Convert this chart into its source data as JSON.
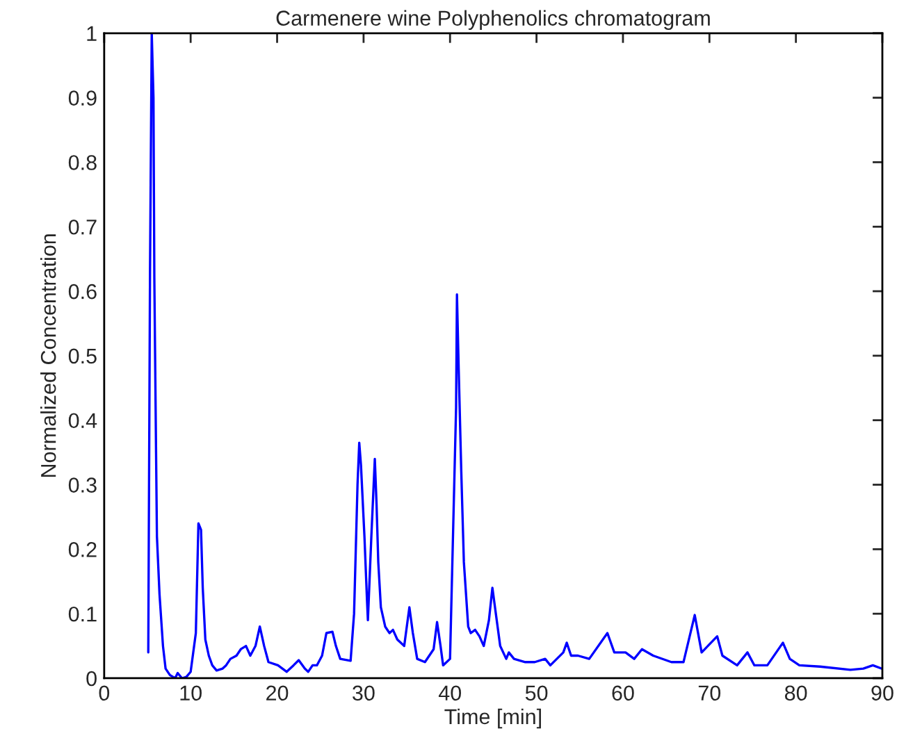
{
  "chart_data": {
    "type": "line",
    "title": "Carmenere wine Polyphenolics chromatogram",
    "xlabel": "Time [min]",
    "ylabel": "Normalized Concentration",
    "xlim": [
      0,
      90
    ],
    "ylim": [
      0,
      1
    ],
    "xticks": [
      0,
      10,
      20,
      30,
      40,
      50,
      60,
      70,
      80,
      90
    ],
    "yticks": [
      0,
      0.1,
      0.2,
      0.3,
      0.4,
      0.5,
      0.6,
      0.7,
      0.8,
      0.9,
      1
    ],
    "grid": false,
    "legend": false,
    "marker": "none",
    "line_style": "solid",
    "series": [
      {
        "color": "#0000ff",
        "x": [
          5.1,
          5.3,
          5.5,
          5.7,
          5.8,
          6.0,
          6.1,
          6.4,
          6.8,
          7.1,
          7.6,
          8.2,
          8.5,
          9.0,
          9.5,
          10.0,
          10.6,
          10.9,
          11.2,
          11.4,
          11.7,
          12.1,
          12.5,
          13.0,
          13.7,
          14.1,
          14.6,
          15.3,
          15.8,
          16.4,
          16.9,
          17.5,
          18.0,
          18.5,
          19.0,
          20.1,
          21.1,
          21.9,
          22.5,
          23.2,
          23.6,
          24.1,
          24.6,
          25.2,
          25.7,
          26.4,
          26.8,
          27.3,
          28.5,
          28.9,
          29.3,
          29.5,
          29.7,
          30.1,
          30.4,
          30.5,
          30.9,
          31.3,
          31.5,
          31.7,
          32.0,
          32.5,
          33.0,
          33.4,
          33.9,
          34.7,
          35.3,
          35.7,
          36.2,
          37.1,
          38.1,
          38.5,
          38.9,
          39.2,
          40.0,
          40.7,
          40.8,
          41.0,
          41.3,
          41.6,
          42.1,
          42.4,
          42.9,
          43.4,
          43.9,
          44.5,
          44.9,
          45.3,
          45.8,
          46.5,
          46.8,
          47.4,
          48.7,
          49.8,
          51.0,
          51.6,
          53.1,
          53.5,
          54.0,
          54.8,
          56.1,
          58.2,
          59.0,
          60.3,
          61.3,
          62.2,
          63.5,
          65.6,
          67.0,
          68.3,
          69.1,
          70.9,
          71.5,
          73.2,
          74.4,
          75.2,
          76.7,
          78.5,
          79.3,
          80.4,
          82.8,
          86.3,
          87.8,
          88.9,
          89.9
        ],
        "values": [
          0.04,
          0.63,
          1.0,
          0.9,
          0.62,
          0.35,
          0.22,
          0.13,
          0.05,
          0.015,
          0.005,
          0.0,
          0.008,
          0.0,
          0.002,
          0.01,
          0.07,
          0.24,
          0.23,
          0.14,
          0.06,
          0.035,
          0.02,
          0.012,
          0.015,
          0.02,
          0.03,
          0.035,
          0.045,
          0.05,
          0.035,
          0.05,
          0.08,
          0.05,
          0.025,
          0.02,
          0.01,
          0.02,
          0.028,
          0.015,
          0.01,
          0.02,
          0.02,
          0.035,
          0.07,
          0.072,
          0.05,
          0.03,
          0.027,
          0.1,
          0.3,
          0.365,
          0.33,
          0.22,
          0.12,
          0.09,
          0.22,
          0.34,
          0.27,
          0.18,
          0.11,
          0.08,
          0.07,
          0.075,
          0.06,
          0.05,
          0.11,
          0.07,
          0.03,
          0.025,
          0.045,
          0.087,
          0.05,
          0.02,
          0.03,
          0.42,
          0.595,
          0.48,
          0.32,
          0.18,
          0.08,
          0.07,
          0.075,
          0.065,
          0.05,
          0.09,
          0.14,
          0.1,
          0.05,
          0.03,
          0.04,
          0.03,
          0.025,
          0.025,
          0.03,
          0.02,
          0.04,
          0.055,
          0.035,
          0.035,
          0.03,
          0.07,
          0.04,
          0.04,
          0.03,
          0.045,
          0.035,
          0.025,
          0.025,
          0.098,
          0.04,
          0.065,
          0.035,
          0.02,
          0.04,
          0.02,
          0.02,
          0.055,
          0.03,
          0.02,
          0.018,
          0.013,
          0.015,
          0.02,
          0.015
        ]
      }
    ]
  }
}
